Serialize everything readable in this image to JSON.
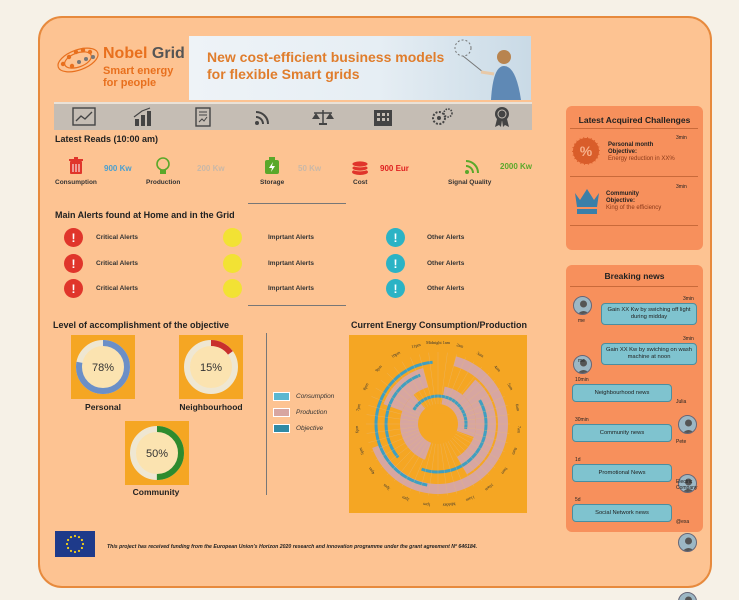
{
  "header": {
    "logo_name": "Nobel",
    "logo_name_2": "Grid",
    "logo_sub_1": "Smart energy",
    "logo_sub_2": "for people",
    "banner_line_1": "New cost-efficient business models",
    "banner_line_2": "for flexible Smart grids"
  },
  "nav": {
    "items": [
      "chart-icon",
      "bar-chart-icon",
      "report-icon",
      "wifi-signal-icon",
      "scale-icon",
      "building-icon",
      "gears-icon",
      "award-icon"
    ]
  },
  "reads": {
    "title": "Latest Reads (10:00 am)",
    "items": [
      {
        "label": "Consumption",
        "value": "900 Kw",
        "color": "#4b9fcf"
      },
      {
        "label": "Production",
        "value": "200 Kw",
        "color": "#c9b8a8"
      },
      {
        "label": "Storage",
        "value": "50 Kw",
        "color": "#c9b8a8"
      },
      {
        "label": "Cost",
        "value": "900 Eur",
        "color": "#e02020"
      },
      {
        "label": "Signal Quality",
        "value": "2000 Kw",
        "color": "#5aa82a"
      }
    ]
  },
  "alerts": {
    "title": "Main Alerts found at Home and in the Grid",
    "critical": "Critical Alerts",
    "important": "Imprtant Alerts",
    "other": "Other Alerts",
    "colors": {
      "critical": "#e0352b",
      "important": "#f2e234",
      "other": "#2bb3c5"
    }
  },
  "objective": {
    "title": "Level of accomplishment of the objective",
    "items": [
      {
        "label": "Personal",
        "percent": "78%",
        "fraction": 0.78,
        "color": "#6b8fc7"
      },
      {
        "label": "Neighbourhood",
        "percent": "15%",
        "fraction": 0.15,
        "color": "#c9302c"
      },
      {
        "label": "Community",
        "percent": "50%",
        "fraction": 0.5,
        "color": "#2e8b2e"
      }
    ]
  },
  "energy": {
    "title": "Current Energy Consumption/Production",
    "legend": [
      {
        "label": "Consumption",
        "color": "#5bb7d0"
      },
      {
        "label": "Production",
        "color": "#d7a6a1"
      },
      {
        "label": "Objective",
        "color": "#2f8aa5"
      }
    ],
    "clock_labels": [
      "Midnight 1am",
      "2am",
      "3am",
      "4am",
      "5am",
      "6am",
      "7am",
      "8am",
      "9am",
      "10am",
      "11am",
      "Midday",
      "1pm",
      "2pm",
      "3pm",
      "4pm",
      "5pm",
      "6pm",
      "7pm",
      "8pm",
      "9pm",
      "10pm",
      "11pm"
    ]
  },
  "challenges": {
    "title": "Latest Acquired Challenges",
    "items": [
      {
        "time": "3min",
        "head_1": "Personal month",
        "head_2": "Objective:",
        "objective": "Energy reduction in XX%"
      },
      {
        "time": "3min",
        "head_1": "Community",
        "head_2": "Objective:",
        "objective": "King of the efficiency"
      }
    ]
  },
  "news": {
    "title": "Breaking news",
    "items": [
      {
        "time": "3min",
        "text": "Gain XX Kw by swiching off light during midday",
        "who": "me"
      },
      {
        "time": "3min",
        "text": "Gain XX Kw by swiching on wash machine at noon",
        "who": "me"
      },
      {
        "time": "10min",
        "text": "Neighbourhood news",
        "who": "Julia"
      },
      {
        "time": "30min",
        "text": "Community news",
        "who": "Pete"
      },
      {
        "time": "1d",
        "text": "Promotional News",
        "who": "Electric Company"
      },
      {
        "time": "5d",
        "text": "Social Network news",
        "who": "@exa"
      }
    ]
  },
  "footer": {
    "text": "This project has received funding from the European Union's Horizon 2020 research and innovation programme under the grant agreement Nº 646184."
  }
}
